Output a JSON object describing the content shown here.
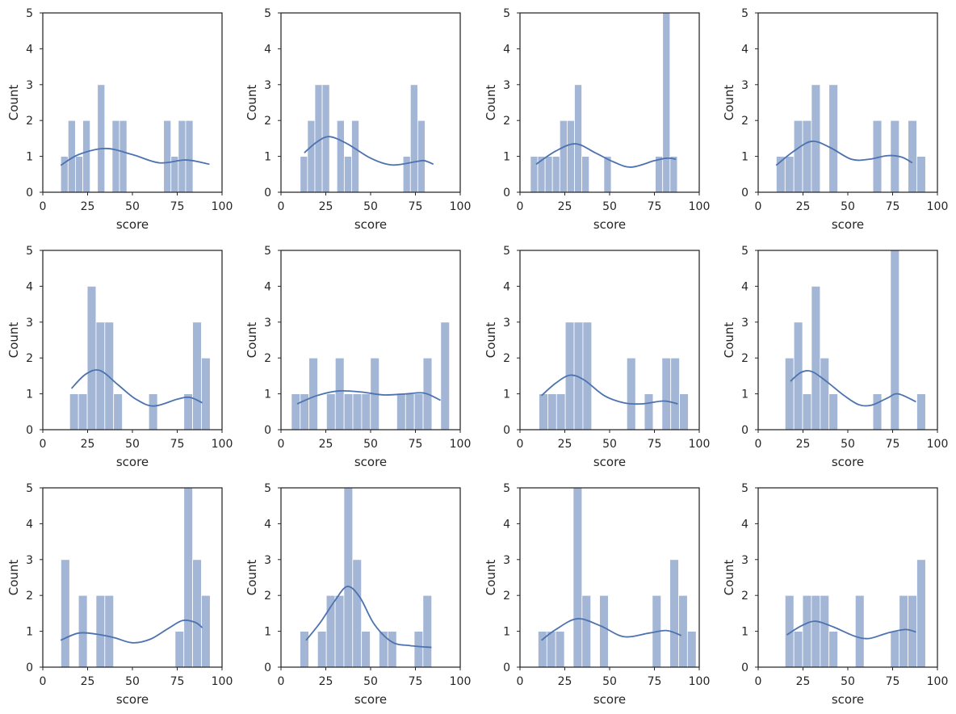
{
  "chart_data": [
    {
      "type": "bar",
      "title": "",
      "xlabel": "score",
      "ylabel": "Count",
      "xlim": [
        0,
        100
      ],
      "ylim": [
        0,
        5
      ],
      "xticks": [
        0,
        25,
        50,
        75,
        100
      ],
      "yticks": [
        0,
        1,
        2,
        3,
        4,
        5
      ],
      "bin_start": 10,
      "bin_width": 4.1,
      "counts": [
        1,
        2,
        1,
        2,
        0,
        3,
        0,
        2,
        2,
        0,
        0,
        0,
        0,
        0,
        2,
        1,
        2,
        2
      ],
      "kde": [
        [
          10,
          0.75
        ],
        [
          20,
          1.05
        ],
        [
          35,
          1.22
        ],
        [
          50,
          1.05
        ],
        [
          65,
          0.82
        ],
        [
          80,
          0.9
        ],
        [
          93,
          0.78
        ]
      ]
    },
    {
      "type": "bar",
      "title": "",
      "xlabel": "score",
      "ylabel": "Count",
      "xlim": [
        0,
        100
      ],
      "ylim": [
        0,
        5
      ],
      "xticks": [
        0,
        25,
        50,
        75,
        100
      ],
      "yticks": [
        0,
        1,
        2,
        3,
        4,
        5
      ],
      "bin_start": 10.7,
      "bin_width": 4.1,
      "counts": [
        1,
        2,
        3,
        3,
        0,
        2,
        1,
        2,
        0,
        0,
        0,
        0,
        0,
        0,
        1,
        3,
        2
      ],
      "kde": [
        [
          13,
          1.1
        ],
        [
          20,
          1.4
        ],
        [
          27,
          1.55
        ],
        [
          37,
          1.35
        ],
        [
          50,
          0.95
        ],
        [
          62,
          0.76
        ],
        [
          75,
          0.85
        ],
        [
          80,
          0.88
        ],
        [
          85,
          0.78
        ]
      ]
    },
    {
      "type": "bar",
      "title": "",
      "xlabel": "score",
      "ylabel": "Count",
      "xlim": [
        0,
        100
      ],
      "ylim": [
        0,
        5
      ],
      "xticks": [
        0,
        25,
        50,
        75,
        100
      ],
      "yticks": [
        0,
        1,
        2,
        3,
        4,
        5
      ],
      "bin_start": 5.8,
      "bin_width": 4.1,
      "counts": [
        1,
        1,
        1,
        1,
        2,
        2,
        3,
        1,
        0,
        0,
        1,
        0,
        0,
        0,
        0,
        0,
        0,
        1,
        5,
        1
      ],
      "kde": [
        [
          9,
          0.78
        ],
        [
          20,
          1.15
        ],
        [
          31,
          1.35
        ],
        [
          42,
          1.1
        ],
        [
          52,
          0.85
        ],
        [
          62,
          0.7
        ],
        [
          75,
          0.88
        ],
        [
          82,
          0.95
        ],
        [
          87,
          0.92
        ]
      ]
    },
    {
      "type": "bar",
      "title": "",
      "xlabel": "score",
      "ylabel": "Count",
      "xlim": [
        0,
        100
      ],
      "ylim": [
        0,
        5
      ],
      "xticks": [
        0,
        25,
        50,
        75,
        100
      ],
      "yticks": [
        0,
        1,
        2,
        3,
        4,
        5
      ],
      "bin_start": 10.1,
      "bin_width": 4.9,
      "counts": [
        1,
        1,
        2,
        2,
        3,
        0,
        3,
        0,
        0,
        0,
        0,
        2,
        0,
        2,
        0,
        2,
        1
      ],
      "kde": [
        [
          10,
          0.75
        ],
        [
          20,
          1.15
        ],
        [
          30,
          1.42
        ],
        [
          40,
          1.25
        ],
        [
          52,
          0.92
        ],
        [
          62,
          0.92
        ],
        [
          72,
          1.02
        ],
        [
          80,
          0.98
        ],
        [
          86,
          0.82
        ]
      ]
    },
    {
      "type": "bar",
      "title": "",
      "xlabel": "score",
      "ylabel": "Count",
      "xlim": [
        0,
        100
      ],
      "ylim": [
        0,
        5
      ],
      "xticks": [
        0,
        25,
        50,
        75,
        100
      ],
      "yticks": [
        0,
        1,
        2,
        3,
        4,
        5
      ],
      "bin_start": 15,
      "bin_width": 4.9,
      "counts": [
        1,
        1,
        4,
        3,
        3,
        1,
        0,
        0,
        0,
        1,
        0,
        0,
        0,
        1,
        3,
        2
      ],
      "kde": [
        [
          16,
          1.15
        ],
        [
          24,
          1.55
        ],
        [
          32,
          1.65
        ],
        [
          42,
          1.25
        ],
        [
          52,
          0.85
        ],
        [
          62,
          0.66
        ],
        [
          75,
          0.85
        ],
        [
          82,
          0.9
        ],
        [
          89,
          0.75
        ]
      ]
    },
    {
      "type": "bar",
      "title": "",
      "xlabel": "score",
      "ylabel": "Count",
      "xlim": [
        0,
        100
      ],
      "ylim": [
        0,
        5
      ],
      "xticks": [
        0,
        25,
        50,
        75,
        100
      ],
      "yticks": [
        0,
        1,
        2,
        3,
        4,
        5
      ],
      "bin_start": 5.8,
      "bin_width": 4.9,
      "counts": [
        1,
        1,
        2,
        0,
        1,
        2,
        1,
        1,
        1,
        2,
        0,
        0,
        1,
        1,
        1,
        2,
        0,
        3
      ],
      "kde": [
        [
          9,
          0.72
        ],
        [
          20,
          0.95
        ],
        [
          32,
          1.08
        ],
        [
          45,
          1.05
        ],
        [
          57,
          0.97
        ],
        [
          70,
          1.0
        ],
        [
          80,
          1.02
        ],
        [
          89,
          0.82
        ]
      ]
    },
    {
      "type": "bar",
      "title": "",
      "xlabel": "score",
      "ylabel": "Count",
      "xlim": [
        0,
        100
      ],
      "ylim": [
        0,
        5
      ],
      "xticks": [
        0,
        25,
        50,
        75,
        100
      ],
      "yticks": [
        0,
        1,
        2,
        3,
        4,
        5
      ],
      "bin_start": 10.6,
      "bin_width": 4.9,
      "counts": [
        1,
        1,
        1,
        3,
        3,
        3,
        0,
        0,
        0,
        0,
        2,
        0,
        1,
        0,
        2,
        2,
        1
      ],
      "kde": [
        [
          12,
          0.95
        ],
        [
          20,
          1.3
        ],
        [
          28,
          1.52
        ],
        [
          36,
          1.38
        ],
        [
          47,
          0.95
        ],
        [
          58,
          0.75
        ],
        [
          68,
          0.72
        ],
        [
          80,
          0.8
        ],
        [
          88,
          0.72
        ]
      ]
    },
    {
      "type": "bar",
      "title": "",
      "xlabel": "score",
      "ylabel": "Count",
      "xlim": [
        0,
        100
      ],
      "ylim": [
        0,
        5
      ],
      "xticks": [
        0,
        25,
        50,
        75,
        100
      ],
      "yticks": [
        0,
        1,
        2,
        3,
        4,
        5
      ],
      "bin_start": 15,
      "bin_width": 4.9,
      "counts": [
        2,
        3,
        1,
        4,
        2,
        1,
        0,
        0,
        0,
        0,
        1,
        0,
        5,
        0,
        0,
        1
      ],
      "kde": [
        [
          18,
          1.35
        ],
        [
          24,
          1.6
        ],
        [
          30,
          1.62
        ],
        [
          38,
          1.35
        ],
        [
          48,
          0.95
        ],
        [
          56,
          0.7
        ],
        [
          63,
          0.68
        ],
        [
          72,
          0.88
        ],
        [
          78,
          1.0
        ],
        [
          88,
          0.78
        ]
      ]
    },
    {
      "type": "bar",
      "title": "",
      "xlabel": "score",
      "ylabel": "Count",
      "xlim": [
        0,
        100
      ],
      "ylim": [
        0,
        5
      ],
      "xticks": [
        0,
        25,
        50,
        75,
        100
      ],
      "yticks": [
        0,
        1,
        2,
        3,
        4,
        5
      ],
      "bin_start": 10.1,
      "bin_width": 4.9,
      "counts": [
        3,
        0,
        2,
        0,
        2,
        2,
        0,
        0,
        0,
        0,
        0,
        0,
        0,
        1,
        5,
        3,
        2
      ],
      "kde": [
        [
          10,
          0.75
        ],
        [
          20,
          0.95
        ],
        [
          30,
          0.92
        ],
        [
          40,
          0.82
        ],
        [
          50,
          0.68
        ],
        [
          60,
          0.78
        ],
        [
          70,
          1.08
        ],
        [
          78,
          1.3
        ],
        [
          85,
          1.25
        ],
        [
          89,
          1.1
        ]
      ]
    },
    {
      "type": "bar",
      "title": "",
      "xlabel": "score",
      "ylabel": "Count",
      "xlim": [
        0,
        100
      ],
      "ylim": [
        0,
        5
      ],
      "xticks": [
        0,
        25,
        50,
        75,
        100
      ],
      "yticks": [
        0,
        1,
        2,
        3,
        4,
        5
      ],
      "bin_start": 10.6,
      "bin_width": 4.9,
      "counts": [
        1,
        0,
        1,
        2,
        2,
        5,
        3,
        1,
        0,
        1,
        1,
        0,
        0,
        1,
        2
      ],
      "kde": [
        [
          14,
          0.75
        ],
        [
          22,
          1.25
        ],
        [
          30,
          1.85
        ],
        [
          37,
          2.25
        ],
        [
          44,
          1.95
        ],
        [
          52,
          1.2
        ],
        [
          62,
          0.7
        ],
        [
          72,
          0.6
        ],
        [
          84,
          0.55
        ]
      ]
    },
    {
      "type": "bar",
      "title": "",
      "xlabel": "score",
      "ylabel": "Count",
      "xlim": [
        0,
        100
      ],
      "ylim": [
        0,
        5
      ],
      "xticks": [
        0,
        25,
        50,
        75,
        100
      ],
      "yticks": [
        0,
        1,
        2,
        3,
        4,
        5
      ],
      "bin_start": 10.1,
      "bin_width": 4.9,
      "counts": [
        1,
        1,
        1,
        0,
        5,
        2,
        0,
        2,
        0,
        0,
        0,
        0,
        0,
        2,
        0,
        3,
        2,
        1
      ],
      "kde": [
        [
          12,
          0.75
        ],
        [
          20,
          1.05
        ],
        [
          32,
          1.35
        ],
        [
          45,
          1.15
        ],
        [
          58,
          0.85
        ],
        [
          72,
          0.95
        ],
        [
          82,
          1.02
        ],
        [
          90,
          0.88
        ]
      ]
    },
    {
      "type": "bar",
      "title": "",
      "xlabel": "score",
      "ylabel": "Count",
      "xlim": [
        0,
        100
      ],
      "ylim": [
        0,
        5
      ],
      "xticks": [
        0,
        25,
        50,
        75,
        100
      ],
      "yticks": [
        0,
        1,
        2,
        3,
        4,
        5
      ],
      "bin_start": 15,
      "bin_width": 4.9,
      "counts": [
        2,
        1,
        2,
        2,
        2,
        1,
        0,
        0,
        2,
        0,
        0,
        0,
        1,
        2,
        2,
        3
      ],
      "kde": [
        [
          16,
          0.9
        ],
        [
          24,
          1.15
        ],
        [
          32,
          1.28
        ],
        [
          42,
          1.12
        ],
        [
          54,
          0.86
        ],
        [
          62,
          0.8
        ],
        [
          72,
          0.95
        ],
        [
          82,
          1.05
        ],
        [
          88,
          0.98
        ]
      ]
    }
  ]
}
